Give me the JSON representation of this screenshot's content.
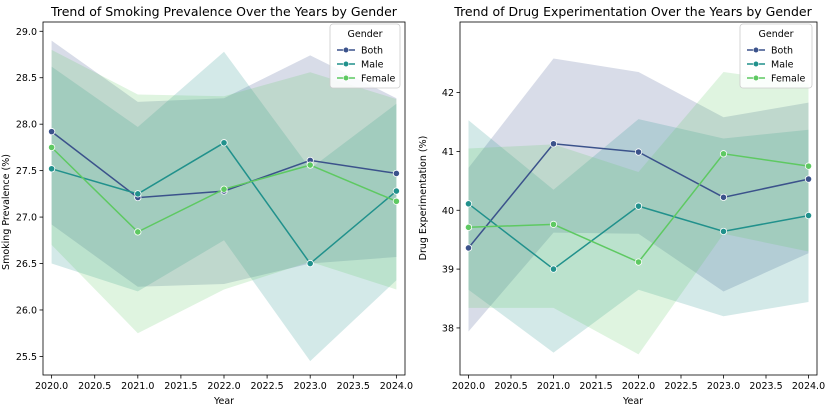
{
  "chart_data": [
    {
      "type": "line",
      "title": "Trend of Smoking Prevalence Over the Years by Gender",
      "xlabel": "Year",
      "ylabel": "Smoking Prevalence (%)",
      "xlim": [
        2019.9,
        2024.1
      ],
      "ylim": [
        25.3,
        29.1
      ],
      "xticks": [
        "2020.0",
        "2020.5",
        "2021.0",
        "2021.5",
        "2022.0",
        "2022.5",
        "2023.0",
        "2023.5",
        "2024.0"
      ],
      "xtick_values": [
        2020.0,
        2020.5,
        2021.0,
        2021.5,
        2022.0,
        2022.5,
        2023.0,
        2023.5,
        2024.0
      ],
      "yticks": [
        "25.5",
        "26.0",
        "26.5",
        "27.0",
        "27.5",
        "28.0",
        "28.5",
        "29.0"
      ],
      "ytick_values": [
        25.5,
        26.0,
        26.5,
        27.0,
        27.5,
        28.0,
        28.5,
        29.0
      ],
      "x": [
        2020,
        2021,
        2022,
        2023,
        2024
      ],
      "legend": {
        "title": "Gender",
        "position": "top-right"
      },
      "series": [
        {
          "name": "Both",
          "color": "#3b528b",
          "values": [
            27.92,
            27.21,
            27.28,
            27.61,
            27.47
          ],
          "ci_low": [
            26.92,
            26.25,
            26.28,
            26.5,
            26.57
          ],
          "ci_high": [
            28.9,
            28.24,
            28.28,
            28.74,
            28.28
          ]
        },
        {
          "name": "Male",
          "color": "#21918c",
          "values": [
            27.52,
            27.25,
            27.8,
            26.5,
            27.28
          ],
          "ci_low": [
            26.5,
            26.2,
            26.75,
            25.45,
            26.32
          ],
          "ci_high": [
            28.62,
            27.97,
            28.78,
            27.52,
            28.22
          ]
        },
        {
          "name": "Female",
          "color": "#5ec962",
          "values": [
            27.75,
            26.84,
            27.3,
            27.56,
            27.17
          ],
          "ci_low": [
            26.7,
            25.75,
            26.22,
            26.52,
            26.22
          ],
          "ci_high": [
            28.8,
            28.32,
            28.3,
            28.56,
            28.27
          ]
        }
      ]
    },
    {
      "type": "line",
      "title": "Trend of Drug Experimentation Over the Years by Gender",
      "xlabel": "Year",
      "ylabel": "Drug Experimentation (%)",
      "xlim": [
        2019.9,
        2024.1
      ],
      "ylim": [
        37.2,
        43.2
      ],
      "xticks": [
        "2020.0",
        "2020.5",
        "2021.0",
        "2021.5",
        "2022.0",
        "2022.5",
        "2023.0",
        "2023.5",
        "2024.0"
      ],
      "xtick_values": [
        2020.0,
        2020.5,
        2021.0,
        2021.5,
        2022.0,
        2022.5,
        2023.0,
        2023.5,
        2024.0
      ],
      "yticks": [
        "38",
        "39",
        "40",
        "41",
        "42"
      ],
      "ytick_values": [
        38,
        39,
        40,
        41,
        42
      ],
      "x": [
        2020,
        2021,
        2022,
        2023,
        2024
      ],
      "legend": {
        "title": "Gender",
        "position": "top-right"
      },
      "series": [
        {
          "name": "Both",
          "color": "#3b528b",
          "values": [
            39.36,
            41.13,
            40.99,
            40.22,
            40.53
          ],
          "ci_low": [
            37.94,
            39.62,
            39.6,
            38.62,
            39.27
          ],
          "ci_high": [
            40.72,
            42.58,
            42.35,
            41.58,
            41.83
          ]
        },
        {
          "name": "Male",
          "color": "#21918c",
          "values": [
            40.11,
            39.0,
            40.07,
            39.64,
            39.91
          ],
          "ci_low": [
            38.65,
            37.58,
            38.65,
            38.2,
            38.44
          ],
          "ci_high": [
            41.53,
            40.35,
            41.55,
            41.22,
            41.37
          ]
        },
        {
          "name": "Female",
          "color": "#5ec962",
          "values": [
            39.71,
            39.76,
            39.12,
            40.96,
            40.75
          ],
          "ci_low": [
            38.34,
            38.34,
            37.55,
            39.6,
            39.3
          ],
          "ci_high": [
            41.05,
            41.12,
            40.65,
            42.35,
            42.15
          ]
        }
      ]
    }
  ]
}
